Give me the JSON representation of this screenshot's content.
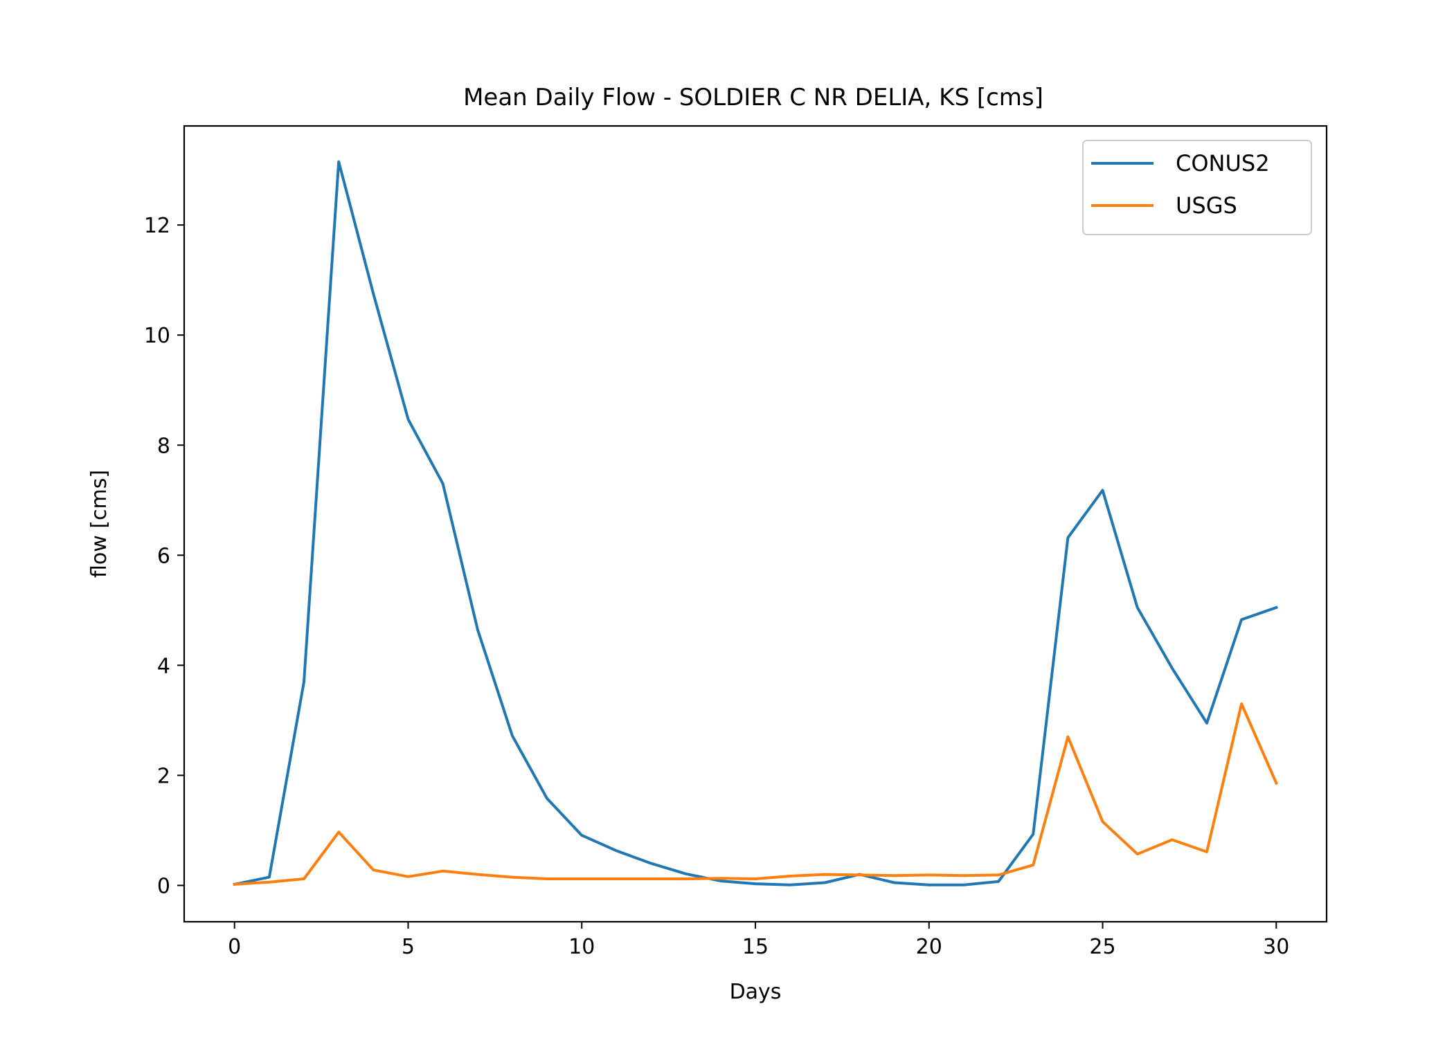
{
  "chart_data": {
    "type": "line",
    "title": "Mean Daily Flow - SOLDIER C NR DELIA, KS [cms]",
    "xlabel": "Days",
    "ylabel": "flow [cms]",
    "xlim": [
      -1.45,
      31.45
    ],
    "ylim": [
      -0.66,
      13.8
    ],
    "xticks": [
      0,
      5,
      10,
      15,
      20,
      25,
      30
    ],
    "yticks": [
      0,
      2,
      4,
      6,
      8,
      10,
      12
    ],
    "grid": false,
    "legend_position": "top-right",
    "x": [
      0,
      1,
      2,
      3,
      4,
      5,
      6,
      7,
      8,
      9,
      10,
      11,
      12,
      13,
      14,
      15,
      16,
      17,
      18,
      19,
      20,
      21,
      22,
      23,
      24,
      25,
      26,
      27,
      28,
      29,
      30
    ],
    "series": [
      {
        "name": "CONUS2",
        "color": "#1f77b4",
        "values": [
          0.02,
          0.15,
          3.7,
          13.15,
          10.75,
          8.47,
          7.3,
          4.65,
          2.72,
          1.58,
          0.91,
          0.63,
          0.4,
          0.21,
          0.08,
          0.03,
          0.01,
          0.05,
          0.2,
          0.05,
          0.01,
          0.01,
          0.07,
          0.93,
          6.32,
          7.18,
          5.05,
          3.95,
          2.95,
          4.83,
          5.05
        ]
      },
      {
        "name": "USGS",
        "color": "#ff7f0e",
        "values": [
          0.02,
          0.06,
          0.12,
          0.97,
          0.28,
          0.16,
          0.26,
          0.2,
          0.15,
          0.12,
          0.12,
          0.12,
          0.12,
          0.12,
          0.13,
          0.12,
          0.17,
          0.2,
          0.19,
          0.18,
          0.19,
          0.18,
          0.19,
          0.37,
          2.7,
          1.16,
          0.57,
          0.83,
          0.61,
          3.3,
          1.86
        ]
      }
    ]
  }
}
